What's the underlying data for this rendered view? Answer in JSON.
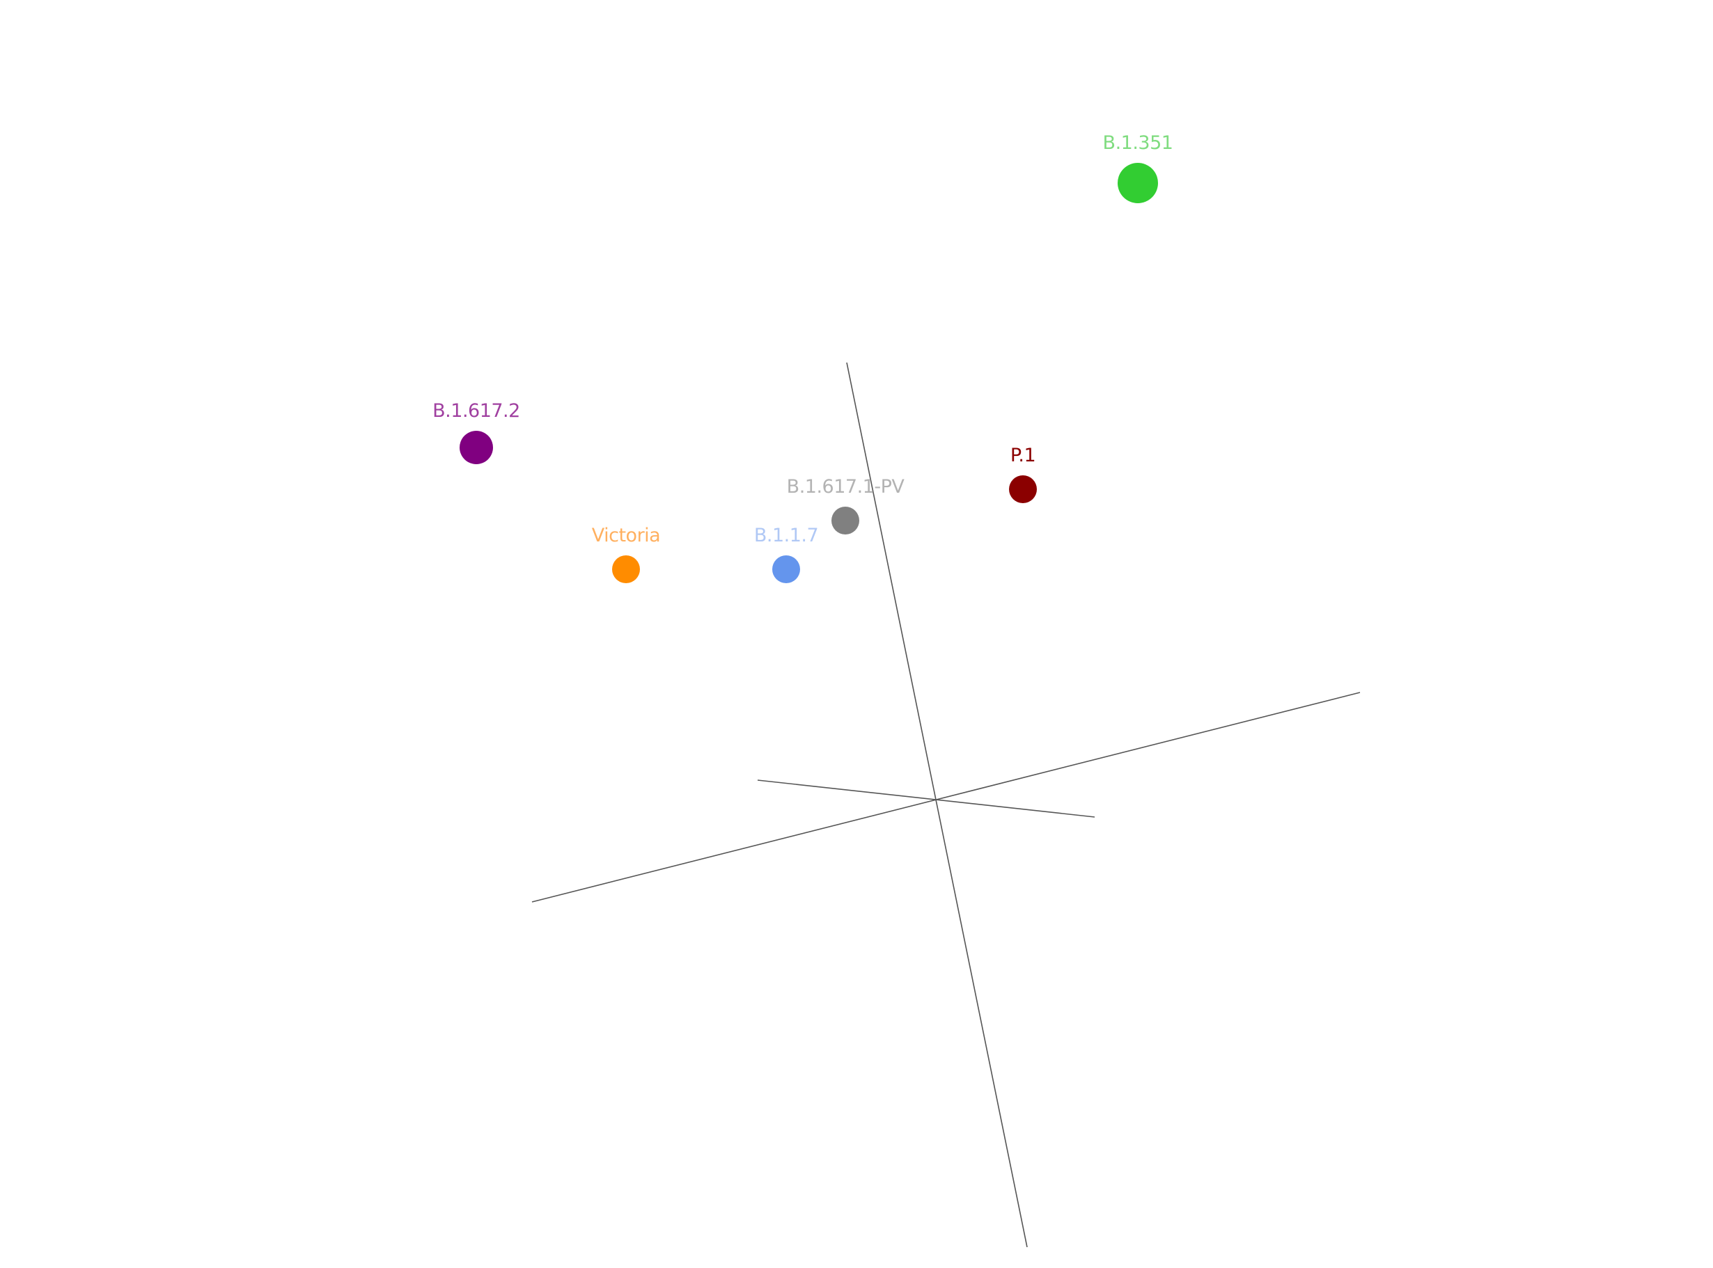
{
  "chart_data": {
    "type": "scatter",
    "title": "",
    "xlabel": "",
    "ylabel": "",
    "zlabel": "",
    "projection": "3d",
    "grid": false,
    "legend": "none",
    "points": [
      {
        "label": "B.1.351",
        "x": 0.58,
        "y": 1.78,
        "size": "large",
        "color": "#32cd32",
        "label_color": "#7fdc7f"
      },
      {
        "label": "B.1.617.2",
        "x": -1.32,
        "y": 1.02,
        "size": "medium",
        "color": "#800080",
        "label_color": "#a040a0"
      },
      {
        "label": "P.1",
        "x": 0.25,
        "y": 0.9,
        "size": "small",
        "color": "#8b0000",
        "label_color": "#8b0000"
      },
      {
        "label": "B.1.617.1-PV",
        "x": -0.26,
        "y": 0.81,
        "size": "small",
        "color": "#808080",
        "label_color": "#b3b3b3"
      },
      {
        "label": "Victoria",
        "x": -0.89,
        "y": 0.67,
        "size": "small",
        "color": "#ff8c00",
        "label_color": "#ffb060"
      },
      {
        "label": "B.1.1.7",
        "x": -0.43,
        "y": 0.67,
        "size": "small",
        "color": "#6495ed",
        "label_color": "#b0c8f5"
      }
    ]
  }
}
